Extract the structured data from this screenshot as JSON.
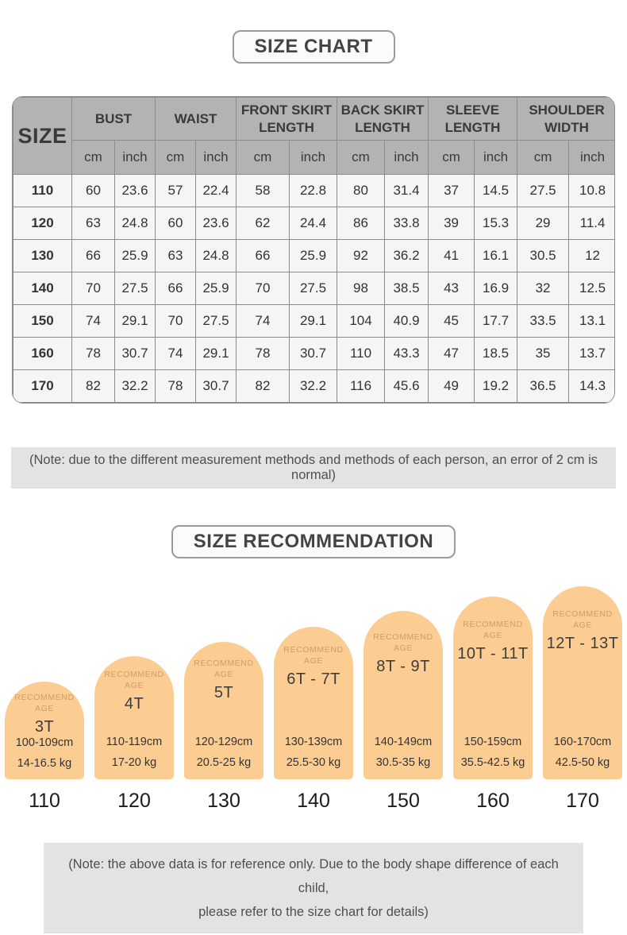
{
  "size_chart": {
    "title": "SIZE CHART",
    "size_col_header": "SIZE",
    "units": [
      "cm",
      "inch"
    ],
    "groups": [
      "BUST",
      "WAIST",
      "FRONT SKIRT LENGTH",
      "BACK SKIRT LENGTH",
      "SLEEVE LENGTH",
      "SHOULDER WIDTH"
    ],
    "rows": [
      {
        "size": "110",
        "values": [
          "60",
          "23.6",
          "57",
          "22.4",
          "58",
          "22.8",
          "80",
          "31.4",
          "37",
          "14.5",
          "27.5",
          "10.8"
        ]
      },
      {
        "size": "120",
        "values": [
          "63",
          "24.8",
          "60",
          "23.6",
          "62",
          "24.4",
          "86",
          "33.8",
          "39",
          "15.3",
          "29",
          "11.4"
        ]
      },
      {
        "size": "130",
        "values": [
          "66",
          "25.9",
          "63",
          "24.8",
          "66",
          "25.9",
          "92",
          "36.2",
          "41",
          "16.1",
          "30.5",
          "12"
        ]
      },
      {
        "size": "140",
        "values": [
          "70",
          "27.5",
          "66",
          "25.9",
          "70",
          "27.5",
          "98",
          "38.5",
          "43",
          "16.9",
          "32",
          "12.5"
        ]
      },
      {
        "size": "150",
        "values": [
          "74",
          "29.1",
          "70",
          "27.5",
          "74",
          "29.1",
          "104",
          "40.9",
          "45",
          "17.7",
          "33.5",
          "13.1"
        ]
      },
      {
        "size": "160",
        "values": [
          "78",
          "30.7",
          "74",
          "29.1",
          "78",
          "30.7",
          "110",
          "43.3",
          "47",
          "18.5",
          "35",
          "13.7"
        ]
      },
      {
        "size": "170",
        "values": [
          "82",
          "32.2",
          "78",
          "30.7",
          "82",
          "32.2",
          "116",
          "45.6",
          "49",
          "19.2",
          "36.5",
          "14.3"
        ]
      }
    ],
    "note": "(Note: due to the different measurement methods and methods of each person, an error of 2 cm is normal)"
  },
  "size_recommendation": {
    "title": "SIZE RECOMMENDATION",
    "recommend_age_line1": "RECOMMEND",
    "recommend_age_line2": "AGE",
    "items": [
      {
        "age": "3T",
        "height": "100-109cm",
        "weight": "14-16.5 kg",
        "size": "110"
      },
      {
        "age": "4T",
        "height": "110-119cm",
        "weight": "17-20 kg",
        "size": "120"
      },
      {
        "age": "5T",
        "height": "120-129cm",
        "weight": "20.5-25 kg",
        "size": "130"
      },
      {
        "age": "6T - 7T",
        "height": "130-139cm",
        "weight": "25.5-30 kg",
        "size": "140"
      },
      {
        "age": "8T - 9T",
        "height": "140-149cm",
        "weight": "30.5-35 kg",
        "size": "150"
      },
      {
        "age": "10T - 11T",
        "height": "150-159cm",
        "weight": "35.5-42.5 kg",
        "size": "160"
      },
      {
        "age": "12T - 13T",
        "height": "160-170cm",
        "weight": "42.5-50 kg",
        "size": "170"
      }
    ],
    "note_line1": "(Note: the above data is for reference only. Due to the body shape difference of each child,",
    "note_line2": "please refer to the size chart for details)"
  },
  "colors": {
    "arch_fill": "#fbcd92",
    "recommend_age_text": "#cd9f60",
    "table_header_bg": "#b3b3b3",
    "note_bg": "#e3e3e3"
  }
}
